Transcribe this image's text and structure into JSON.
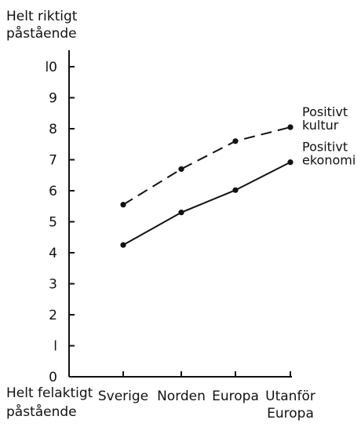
{
  "chart_data": {
    "type": "line",
    "ylabel_top": [
      "Helt riktigt",
      "påstående"
    ],
    "ylabel_bottom": [
      "Helt felaktigt",
      "påstående"
    ],
    "categories": [
      [
        "Sverige"
      ],
      [
        "Norden"
      ],
      [
        "Europa"
      ],
      [
        "Utanför",
        "Europa"
      ]
    ],
    "yticks": [
      "0",
      "l",
      "2",
      "3",
      "4",
      "5",
      "6",
      "7",
      "8",
      "9",
      "l0"
    ],
    "ylim": [
      0,
      10
    ],
    "grid": false,
    "series": [
      {
        "name": [
          "Positivt",
          "kultur"
        ],
        "values": [
          5.55,
          6.7,
          7.6,
          8.05
        ],
        "style": "dashed",
        "color": "#111111"
      },
      {
        "name": [
          "Positivt",
          "ekonomi"
        ],
        "values": [
          4.25,
          5.3,
          6.02,
          6.92
        ],
        "style": "solid",
        "color": "#111111"
      }
    ]
  }
}
